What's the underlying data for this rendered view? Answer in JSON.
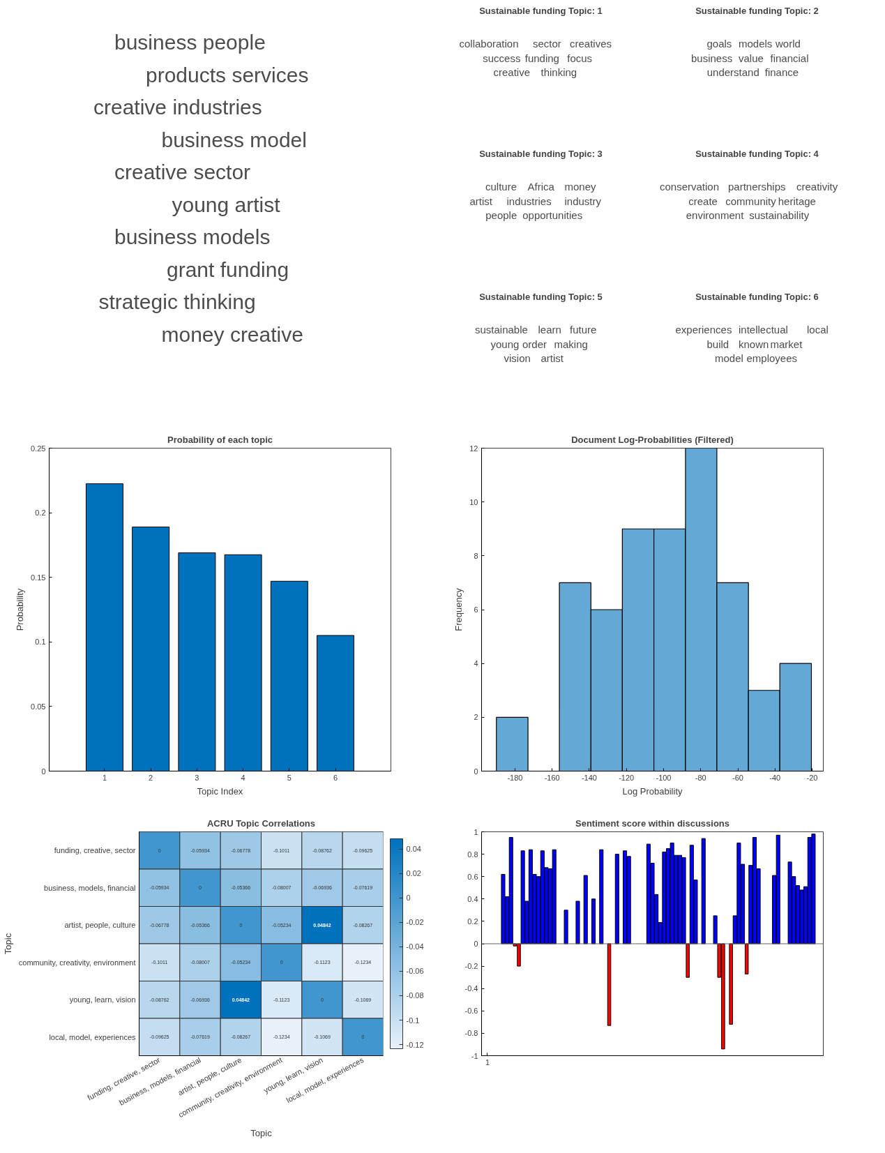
{
  "chart_data": [
    {
      "type": "other",
      "categories": [
        "business people",
        "products services",
        "creative industries",
        "business model",
        "creative sector",
        "young artist",
        "business models",
        "grant funding",
        "strategic thinking",
        "money creative"
      ]
    },
    {
      "type": "other",
      "title": "Sustainable funding Topic: 1",
      "categories": [
        "collaboration",
        "sector",
        "creatives",
        "success",
        "funding",
        "focus",
        "creative",
        "thinking"
      ]
    },
    {
      "type": "other",
      "title": "Sustainable funding Topic: 2",
      "categories": [
        "goals",
        "models",
        "world",
        "business",
        "value",
        "financial",
        "understand",
        "finance"
      ]
    },
    {
      "type": "other",
      "title": "Sustainable funding Topic: 3",
      "categories": [
        "culture",
        "Africa",
        "money",
        "artist",
        "industries",
        "industry",
        "people",
        "opportunities"
      ]
    },
    {
      "type": "other",
      "title": "Sustainable funding Topic: 4",
      "categories": [
        "conservation",
        "partnerships",
        "creativity",
        "create",
        "community",
        "heritage",
        "environment",
        "sustainability"
      ]
    },
    {
      "type": "other",
      "title": "Sustainable funding Topic: 5",
      "categories": [
        "sustainable",
        "learn",
        "future",
        "young",
        "order",
        "making",
        "vision",
        "artist"
      ]
    },
    {
      "type": "other",
      "title": "Sustainable funding Topic: 6",
      "categories": [
        "experiences",
        "intellectual",
        "local",
        "build",
        "known",
        "market",
        "model",
        "employees"
      ]
    },
    {
      "type": "bar",
      "title": "Probability of each topic",
      "xlabel": "Topic Index",
      "ylabel": "Probability",
      "x": [
        1,
        2,
        3,
        4,
        5,
        6
      ],
      "values": [
        0.2225,
        0.189,
        0.169,
        0.1675,
        0.147,
        0.105
      ],
      "color": "#0072bd",
      "xlim": [
        -0.2,
        7.2
      ],
      "xticks": [
        1,
        2,
        3,
        4,
        5,
        6
      ],
      "ylim": [
        0,
        0.25
      ],
      "yticks": [
        0,
        0.05,
        0.1,
        0.15,
        0.2,
        0.25
      ]
    },
    {
      "type": "histogram",
      "title": "Document Log-Probabilities (Filtered)",
      "xlabel": "Log Probability",
      "ylabel": "Frequency",
      "bins": [
        -190,
        -173,
        -156.1,
        -139.1,
        -122.2,
        -105.2,
        -88.2,
        -71.3,
        -54.3,
        -37.4,
        -20.4
      ],
      "values": [
        2,
        0,
        7,
        6,
        9,
        9,
        12,
        7,
        3,
        4
      ],
      "color": "#64a8d6",
      "xlim": [
        -198,
        -14
      ],
      "xticks": [
        -180,
        -160,
        -140,
        -120,
        -100,
        -80,
        -60,
        -40,
        -20
      ],
      "ylim": [
        0,
        12
      ],
      "yticks": [
        0,
        2,
        4,
        6,
        8,
        10,
        12
      ]
    },
    {
      "type": "heatmap",
      "title": "ACRU Topic Correlations",
      "xlabel": "Topic",
      "ylabel": "Topic",
      "categories": [
        "funding, creative, sector",
        "business, models, financial",
        "artist, people, culture",
        "community, creativity, environment",
        "young, learn, vision",
        "local, model, experiences"
      ],
      "y_categories": [
        "funding, creative, sector",
        "business, models, financial",
        "artist, people, culture",
        "community, creativity, environment",
        "young, learn, vision",
        "local, model, experiences"
      ],
      "cells": [
        [
          0,
          -0.05934,
          -0.06778,
          -0.1011,
          -0.08762,
          -0.09625
        ],
        [
          -0.05934,
          0,
          -0.05366,
          -0.08007,
          -0.06936,
          -0.07619
        ],
        [
          -0.06778,
          -0.05366,
          0,
          -0.05234,
          0.04842,
          -0.08267
        ],
        [
          -0.1011,
          -0.08007,
          -0.05234,
          0,
          -0.1123,
          -0.1234
        ],
        [
          -0.08762,
          -0.06936,
          0.04842,
          -0.1123,
          0,
          -0.1069
        ],
        [
          -0.09625,
          -0.07619,
          -0.08267,
          -0.1234,
          -0.1069,
          0
        ]
      ],
      "clim": [
        -0.1234,
        0.04842
      ],
      "cticks": [
        -0.12,
        -0.1,
        -0.08,
        -0.06,
        -0.04,
        -0.02,
        0,
        0.02,
        0.04
      ],
      "data_labels": true
    },
    {
      "type": "bar",
      "title": "Sentiment score within discussions",
      "categories": [
        null,
        "1",
        null,
        null,
        null,
        null,
        null,
        null,
        null,
        null,
        null,
        null,
        null,
        null,
        null,
        null,
        null,
        null,
        null,
        null,
        null,
        null,
        null,
        null,
        null,
        null,
        null,
        null,
        null,
        null,
        null,
        null,
        null,
        null,
        null,
        null,
        null,
        null,
        null,
        null,
        null,
        null,
        null,
        null,
        null,
        null,
        null,
        null,
        null,
        null,
        null,
        null,
        null,
        null,
        null,
        null,
        null,
        null,
        null,
        null,
        null,
        null,
        null,
        null,
        null,
        null,
        null,
        null,
        null,
        null,
        null,
        null,
        null,
        null,
        null,
        null,
        null,
        null,
        null,
        null,
        null,
        null,
        null,
        null,
        null,
        null,
        null
      ],
      "ylim": [
        -1,
        1
      ],
      "yticks": [
        -1,
        -0.8,
        -0.6,
        -0.4,
        -0.2,
        0,
        0.2,
        0.4,
        0.6,
        0.8,
        1
      ],
      "series": [
        {
          "color": "#0000ff",
          "values": [
            null,
            null,
            null,
            null,
            null,
            0.62,
            0.42,
            0.95,
            null,
            null,
            0.83,
            0.38,
            0.84,
            0.62,
            0.6,
            0.83,
            0.68,
            0.67,
            0.84,
            null,
            null,
            0.3,
            null,
            null,
            0.38,
            null,
            0.61,
            null,
            0.4,
            null,
            0.84,
            null,
            null,
            null,
            0.8,
            null,
            0.83,
            0.78,
            null,
            null,
            null,
            null,
            0.89,
            0.72,
            0.44,
            0.19,
            0.82,
            0.85,
            0.9,
            0.79,
            0.79,
            0.77,
            null,
            0.88,
            0.57,
            null,
            0.94,
            null,
            null,
            0.25,
            null,
            null,
            null,
            null,
            0.25,
            0.9,
            0.71,
            null,
            0.7,
            0.95,
            0.67,
            null,
            null,
            null,
            0.61,
            0.97,
            null,
            null,
            0.73,
            0.6,
            0.52,
            0.48,
            0.51,
            0.95,
            0.98,
            null,
            null
          ]
        },
        {
          "color": "#ff0000",
          "values": [
            null,
            null,
            null,
            null,
            null,
            null,
            null,
            null,
            -0.02,
            -0.2,
            null,
            null,
            null,
            null,
            null,
            null,
            null,
            null,
            null,
            null,
            null,
            null,
            null,
            null,
            null,
            null,
            null,
            null,
            null,
            null,
            null,
            null,
            -0.73,
            null,
            null,
            null,
            null,
            null,
            null,
            null,
            null,
            null,
            null,
            null,
            null,
            null,
            null,
            null,
            null,
            null,
            null,
            null,
            -0.3,
            null,
            null,
            null,
            null,
            null,
            null,
            null,
            -0.3,
            -0.94,
            null,
            -0.72,
            null,
            null,
            null,
            -0.27,
            null,
            null,
            null,
            null,
            null,
            null,
            null,
            null,
            null,
            null,
            null,
            null,
            null,
            null,
            null,
            null,
            null,
            null,
            null
          ]
        }
      ]
    }
  ]
}
